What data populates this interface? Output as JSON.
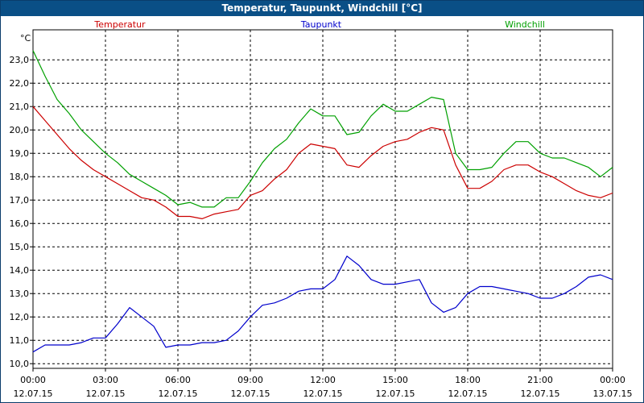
{
  "window": {
    "title": "Temperatur, Taupunkt, Windchill [°C]"
  },
  "chart_data": {
    "type": "line",
    "title": "Temperatur, Taupunkt, Windchill [°C]",
    "unit": "°C",
    "ylim": [
      10.0,
      23.0
    ],
    "yticks": [
      "10,0",
      "11,0",
      "12,0",
      "13,0",
      "14,0",
      "15,0",
      "16,0",
      "17,0",
      "18,0",
      "19,0",
      "20,0",
      "21,0",
      "22,0",
      "23,0"
    ],
    "xlim": [
      0,
      24
    ],
    "xticks": [
      {
        "time": "00:00",
        "date": "12.07.15"
      },
      {
        "time": "03:00",
        "date": "12.07.15"
      },
      {
        "time": "06:00",
        "date": "12.07.15"
      },
      {
        "time": "09:00",
        "date": "12.07.15"
      },
      {
        "time": "12:00",
        "date": "12.07.15"
      },
      {
        "time": "15:00",
        "date": "12.07.15"
      },
      {
        "time": "18:00",
        "date": "12.07.15"
      },
      {
        "time": "21:00",
        "date": "12.07.15"
      },
      {
        "time": "00:00",
        "date": "13.07.15"
      }
    ],
    "grid": true,
    "legend": "top",
    "series": [
      {
        "name": "Temperatur",
        "color": "#cc0000",
        "points": [
          [
            0,
            21.0
          ],
          [
            0.5,
            20.4
          ],
          [
            1,
            19.8
          ],
          [
            1.5,
            19.2
          ],
          [
            2,
            18.7
          ],
          [
            2.5,
            18.3
          ],
          [
            3,
            18.0
          ],
          [
            3.5,
            17.7
          ],
          [
            4,
            17.4
          ],
          [
            4.5,
            17.1
          ],
          [
            5,
            17.0
          ],
          [
            5.5,
            16.7
          ],
          [
            6,
            16.3
          ],
          [
            6.5,
            16.3
          ],
          [
            7,
            16.2
          ],
          [
            7.5,
            16.4
          ],
          [
            8,
            16.5
          ],
          [
            8.5,
            16.6
          ],
          [
            9,
            17.2
          ],
          [
            9.5,
            17.4
          ],
          [
            10,
            17.9
          ],
          [
            10.5,
            18.3
          ],
          [
            11,
            19.0
          ],
          [
            11.5,
            19.4
          ],
          [
            12,
            19.3
          ],
          [
            12.5,
            19.2
          ],
          [
            13,
            18.5
          ],
          [
            13.5,
            18.4
          ],
          [
            14,
            18.9
          ],
          [
            14.5,
            19.3
          ],
          [
            15,
            19.5
          ],
          [
            15.5,
            19.6
          ],
          [
            16,
            19.9
          ],
          [
            16.5,
            20.1
          ],
          [
            17,
            20.0
          ],
          [
            17.5,
            18.5
          ],
          [
            18,
            17.5
          ],
          [
            18.5,
            17.5
          ],
          [
            19,
            17.8
          ],
          [
            19.5,
            18.3
          ],
          [
            20,
            18.5
          ],
          [
            20.5,
            18.5
          ],
          [
            21,
            18.2
          ],
          [
            21.5,
            18.0
          ],
          [
            22,
            17.7
          ],
          [
            22.5,
            17.4
          ],
          [
            23,
            17.2
          ],
          [
            23.5,
            17.1
          ],
          [
            24,
            17.3
          ]
        ]
      },
      {
        "name": "Taupunkt",
        "color": "#0000cc",
        "points": [
          [
            0,
            10.5
          ],
          [
            0.5,
            10.8
          ],
          [
            1,
            10.8
          ],
          [
            1.5,
            10.8
          ],
          [
            2,
            10.9
          ],
          [
            2.5,
            11.1
          ],
          [
            3,
            11.1
          ],
          [
            3.5,
            11.7
          ],
          [
            4,
            12.4
          ],
          [
            4.5,
            12.0
          ],
          [
            5,
            11.6
          ],
          [
            5.5,
            10.7
          ],
          [
            6,
            10.8
          ],
          [
            6.5,
            10.8
          ],
          [
            7,
            10.9
          ],
          [
            7.5,
            10.9
          ],
          [
            8,
            11.0
          ],
          [
            8.5,
            11.4
          ],
          [
            9,
            12.0
          ],
          [
            9.5,
            12.5
          ],
          [
            10,
            12.6
          ],
          [
            10.5,
            12.8
          ],
          [
            11,
            13.1
          ],
          [
            11.5,
            13.2
          ],
          [
            12,
            13.2
          ],
          [
            12.5,
            13.6
          ],
          [
            13,
            14.6
          ],
          [
            13.5,
            14.2
          ],
          [
            14,
            13.6
          ],
          [
            14.5,
            13.4
          ],
          [
            15,
            13.4
          ],
          [
            15.5,
            13.5
          ],
          [
            16,
            13.6
          ],
          [
            16.5,
            12.6
          ],
          [
            17,
            12.2
          ],
          [
            17.5,
            12.4
          ],
          [
            18,
            13.0
          ],
          [
            18.5,
            13.3
          ],
          [
            19,
            13.3
          ],
          [
            19.5,
            13.2
          ],
          [
            20,
            13.1
          ],
          [
            20.5,
            13.0
          ],
          [
            21,
            12.8
          ],
          [
            21.5,
            12.8
          ],
          [
            22,
            13.0
          ],
          [
            22.5,
            13.3
          ],
          [
            23,
            13.7
          ],
          [
            23.5,
            13.8
          ],
          [
            24,
            13.6
          ]
        ]
      },
      {
        "name": "Windchill",
        "color": "#00a000",
        "points": [
          [
            0,
            23.4
          ],
          [
            0.5,
            22.3
          ],
          [
            1,
            21.3
          ],
          [
            1.5,
            20.7
          ],
          [
            2,
            20.0
          ],
          [
            2.5,
            19.5
          ],
          [
            3,
            19.0
          ],
          [
            3.5,
            18.6
          ],
          [
            4,
            18.1
          ],
          [
            4.5,
            17.8
          ],
          [
            5,
            17.5
          ],
          [
            5.5,
            17.2
          ],
          [
            6,
            16.8
          ],
          [
            6.5,
            16.9
          ],
          [
            7,
            16.7
          ],
          [
            7.5,
            16.7
          ],
          [
            8,
            17.1
          ],
          [
            8.5,
            17.1
          ],
          [
            9,
            17.8
          ],
          [
            9.5,
            18.6
          ],
          [
            10,
            19.2
          ],
          [
            10.5,
            19.6
          ],
          [
            11,
            20.3
          ],
          [
            11.5,
            20.9
          ],
          [
            12,
            20.6
          ],
          [
            12.5,
            20.6
          ],
          [
            13,
            19.8
          ],
          [
            13.5,
            19.9
          ],
          [
            14,
            20.6
          ],
          [
            14.5,
            21.1
          ],
          [
            15,
            20.8
          ],
          [
            15.5,
            20.8
          ],
          [
            16,
            21.1
          ],
          [
            16.5,
            21.4
          ],
          [
            17,
            21.3
          ],
          [
            17.5,
            19.0
          ],
          [
            18,
            18.3
          ],
          [
            18.5,
            18.3
          ],
          [
            19,
            18.4
          ],
          [
            19.5,
            19.0
          ],
          [
            20,
            19.5
          ],
          [
            20.5,
            19.5
          ],
          [
            21,
            19.0
          ],
          [
            21.5,
            18.8
          ],
          [
            22,
            18.8
          ],
          [
            22.5,
            18.6
          ],
          [
            23,
            18.4
          ],
          [
            23.5,
            18.0
          ],
          [
            24,
            18.4
          ]
        ]
      }
    ]
  }
}
